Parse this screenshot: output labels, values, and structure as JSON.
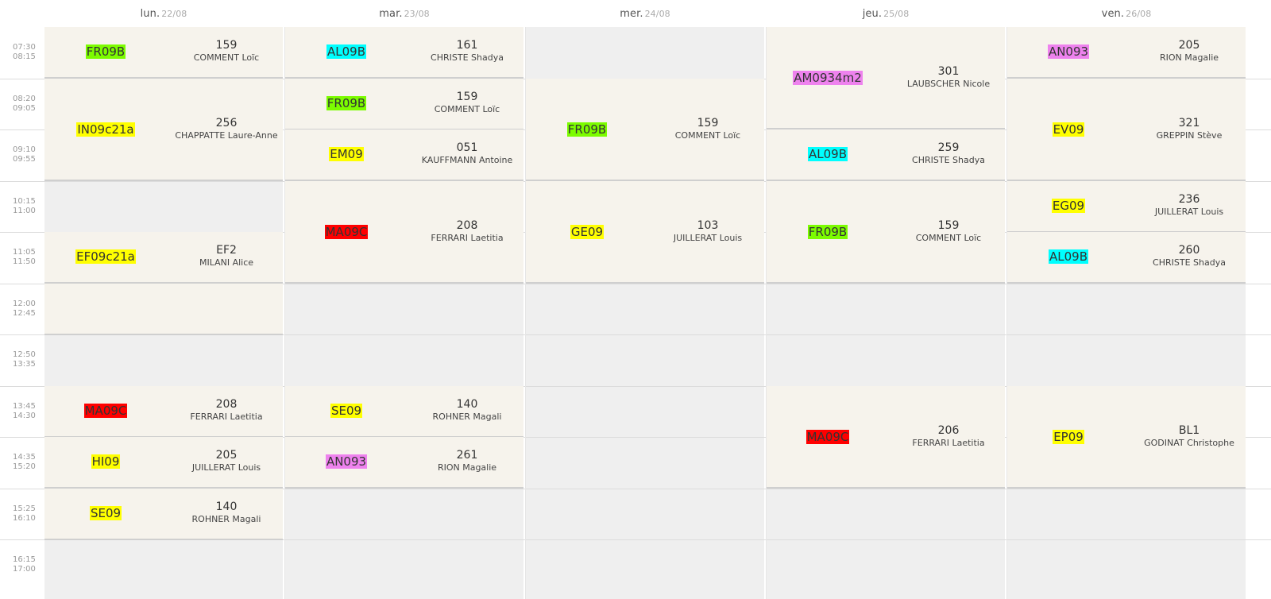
{
  "days": [
    {
      "name": "lun.",
      "date": "22/08"
    },
    {
      "name": "mar.",
      "date": "23/08"
    },
    {
      "name": "mer.",
      "date": "24/08"
    },
    {
      "name": "jeu.",
      "date": "25/08"
    },
    {
      "name": "ven.",
      "date": "26/08"
    }
  ],
  "slots": [
    {
      "start": "07:30",
      "end": "08:15"
    },
    {
      "start": "08:20",
      "end": "09:05"
    },
    {
      "start": "09:10",
      "end": "09:55"
    },
    {
      "start": "10:15",
      "end": "11:00"
    },
    {
      "start": "11:05",
      "end": "11:50"
    },
    {
      "start": "12:00",
      "end": "12:45"
    },
    {
      "start": "12:50",
      "end": "13:35"
    },
    {
      "start": "13:45",
      "end": "14:30"
    },
    {
      "start": "14:35",
      "end": "15:20"
    },
    {
      "start": "15:25",
      "end": "16:10"
    },
    {
      "start": "16:15",
      "end": "17:00"
    }
  ],
  "colors": {
    "green": "#7cfc00",
    "cyan": "#00ffff",
    "yellow": "#ffff00",
    "red": "#ff0000",
    "pink": "#ee82ee"
  },
  "lessons": [
    {
      "day": 0,
      "start": 0,
      "span": 1,
      "code": "FR09B",
      "color": "green",
      "room": "159",
      "teacher": "COMMENT Loïc"
    },
    {
      "day": 0,
      "start": 1,
      "span": 2,
      "code": "IN09c21a",
      "color": "yellow",
      "room": "256",
      "teacher": "CHAPPATTE Laure-Anne"
    },
    {
      "day": 0,
      "start": 4,
      "span": 1,
      "code": "EF09c21a",
      "color": "yellow",
      "room": "EF2",
      "teacher": "MILANI Alice"
    },
    {
      "day": 0,
      "start": 7,
      "span": 1,
      "code": "MA09C",
      "color": "red",
      "room": "208",
      "teacher": "FERRARI Laetitia"
    },
    {
      "day": 0,
      "start": 8,
      "span": 1,
      "code": "HI09",
      "color": "yellow",
      "room": "205",
      "teacher": "JUILLERAT Louis"
    },
    {
      "day": 0,
      "start": 9,
      "span": 1,
      "code": "SE09",
      "color": "yellow",
      "room": "140",
      "teacher": "ROHNER Magali"
    },
    {
      "day": 1,
      "start": 0,
      "span": 1,
      "code": "AL09B",
      "color": "cyan",
      "room": "161",
      "teacher": "CHRISTE Shadya"
    },
    {
      "day": 1,
      "start": 1,
      "span": 1,
      "code": "FR09B",
      "color": "green",
      "room": "159",
      "teacher": "COMMENT Loïc"
    },
    {
      "day": 1,
      "start": 2,
      "span": 1,
      "code": "EM09",
      "color": "yellow",
      "room": "051",
      "teacher": "KAUFFMANN Antoine"
    },
    {
      "day": 1,
      "start": 3,
      "span": 2,
      "code": "MA09C",
      "color": "red",
      "room": "208",
      "teacher": "FERRARI Laetitia"
    },
    {
      "day": 1,
      "start": 7,
      "span": 1,
      "code": "SE09",
      "color": "yellow",
      "room": "140",
      "teacher": "ROHNER Magali"
    },
    {
      "day": 1,
      "start": 8,
      "span": 1,
      "code": "AN093",
      "color": "pink",
      "room": "261",
      "teacher": "RION Magalie"
    },
    {
      "day": 2,
      "start": 1,
      "span": 2,
      "code": "FR09B",
      "color": "green",
      "room": "159",
      "teacher": "COMMENT Loïc"
    },
    {
      "day": 2,
      "start": 3,
      "span": 2,
      "code": "GE09",
      "color": "yellow",
      "room": "103",
      "teacher": "JUILLERAT Louis"
    },
    {
      "day": 3,
      "start": 0,
      "span": 2,
      "code": "AM0934m2",
      "color": "pink",
      "room": "301",
      "teacher": "LAUBSCHER Nicole"
    },
    {
      "day": 3,
      "start": 2,
      "span": 1,
      "code": "AL09B",
      "color": "cyan",
      "room": "259",
      "teacher": "CHRISTE Shadya"
    },
    {
      "day": 3,
      "start": 3,
      "span": 2,
      "code": "FR09B",
      "color": "green",
      "room": "159",
      "teacher": "COMMENT Loïc"
    },
    {
      "day": 3,
      "start": 7,
      "span": 2,
      "code": "MA09C",
      "color": "red",
      "room": "206",
      "teacher": "FERRARI Laetitia"
    },
    {
      "day": 4,
      "start": 0,
      "span": 1,
      "code": "AN093",
      "color": "pink",
      "room": "205",
      "teacher": "RION Magalie"
    },
    {
      "day": 4,
      "start": 1,
      "span": 2,
      "code": "EV09",
      "color": "yellow",
      "room": "321",
      "teacher": "GREPPIN Stève"
    },
    {
      "day": 4,
      "start": 3,
      "span": 1,
      "code": "EG09",
      "color": "yellow",
      "room": "236",
      "teacher": "JUILLERAT Louis"
    },
    {
      "day": 4,
      "start": 4,
      "span": 1,
      "code": "AL09B",
      "color": "cyan",
      "room": "260",
      "teacher": "CHRISTE Shadya"
    },
    {
      "day": 4,
      "start": 7,
      "span": 2,
      "code": "EP09",
      "color": "yellow",
      "room": "BL1",
      "teacher": "GODINAT Christophe"
    }
  ],
  "empty_blocks": [
    {
      "day": 0,
      "start": 5,
      "span": 1
    }
  ]
}
